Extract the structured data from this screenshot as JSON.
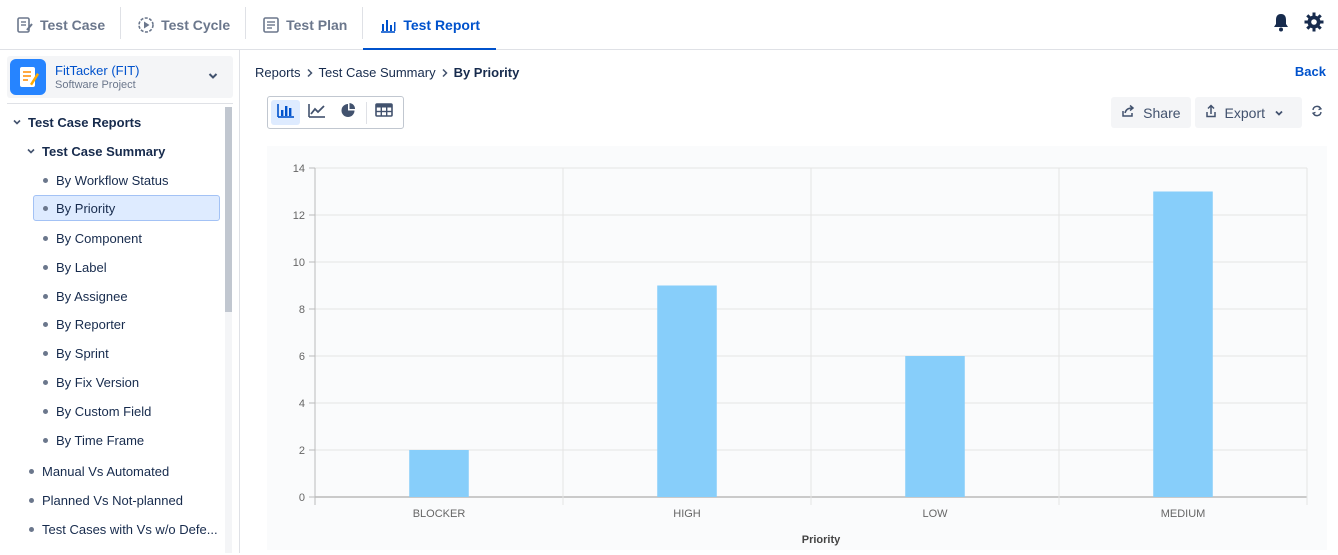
{
  "nav": {
    "tabs": [
      {
        "label": "Test Case",
        "icon": "test-case-icon"
      },
      {
        "label": "Test Cycle",
        "icon": "test-cycle-icon"
      },
      {
        "label": "Test Plan",
        "icon": "test-plan-icon"
      },
      {
        "label": "Test Report",
        "icon": "test-report-icon",
        "active": true
      }
    ],
    "icons": [
      "bell-icon",
      "gear-icon"
    ]
  },
  "project": {
    "name": "FitTacker (FIT)",
    "type": "Software Project"
  },
  "tree": {
    "root": "Test Case Reports",
    "summary": "Test Case Summary",
    "summary_items": [
      "By Workflow Status",
      "By Priority",
      "By Component",
      "By Label",
      "By Assignee",
      "By Reporter",
      "By Sprint",
      "By Fix Version",
      "By Custom Field",
      "By Time Frame"
    ],
    "selected": "By Priority",
    "other_items": [
      "Manual Vs Automated",
      "Planned Vs Not-planned",
      "Test Cases with Vs w/o Defe..."
    ]
  },
  "breadcrumb": {
    "first": "Reports",
    "second": "Test Case Summary",
    "current": "By Priority"
  },
  "back_label": "Back",
  "actions": {
    "share": "Share",
    "export": "Export"
  },
  "colors": {
    "accent": "#0052cc",
    "bar": "#87cefa",
    "selected_bg": "#deebff"
  },
  "chart_data": {
    "type": "bar",
    "categories": [
      "BLOCKER",
      "HIGH",
      "LOW",
      "MEDIUM"
    ],
    "values": [
      2,
      9,
      6,
      13
    ],
    "title": "",
    "xlabel": "Priority",
    "ylabel": "",
    "ylim": [
      0,
      14
    ],
    "yticks": [
      0,
      2,
      4,
      6,
      8,
      10,
      12,
      14
    ],
    "grid": true,
    "legend": "none"
  }
}
